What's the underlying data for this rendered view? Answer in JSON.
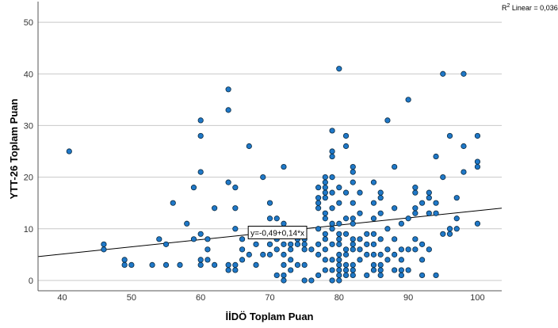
{
  "chart_data": {
    "type": "scatter",
    "xlabel": "İİDÖ Toplam Puan",
    "ylabel": "YTT-26 Toplam Puan",
    "xlim": [
      36.5,
      103.5
    ],
    "ylim": [
      -2,
      54
    ],
    "x_ticks": [
      40,
      50,
      60,
      70,
      80,
      90,
      100
    ],
    "y_ticks": [
      0,
      10,
      20,
      30,
      40,
      50
    ],
    "grid": "horizontal",
    "colors": {
      "point": "#1f78c8",
      "point_edge": "#0b2a40",
      "grid": "#c8c8c8",
      "fit_line": "#000000"
    },
    "r2_label": {
      "prefix": "R",
      "sup": "2",
      "text": " Linear = 0,036"
    },
    "fit_line": {
      "intercept": -0.49,
      "slope": 0.14,
      "label": "y=-0,49+0,14*x"
    },
    "points": [
      [
        41,
        25
      ],
      [
        46,
        7
      ],
      [
        46,
        6
      ],
      [
        49,
        4
      ],
      [
        49,
        3
      ],
      [
        50,
        3
      ],
      [
        53,
        3
      ],
      [
        54,
        8
      ],
      [
        55,
        7
      ],
      [
        55,
        3
      ],
      [
        56,
        15
      ],
      [
        57,
        3
      ],
      [
        58,
        11
      ],
      [
        59,
        18
      ],
      [
        59,
        8
      ],
      [
        60,
        31
      ],
      [
        60,
        28
      ],
      [
        60,
        21
      ],
      [
        60,
        9
      ],
      [
        60,
        4
      ],
      [
        60,
        3
      ],
      [
        61,
        8
      ],
      [
        61,
        6
      ],
      [
        61,
        4
      ],
      [
        62,
        14
      ],
      [
        62,
        3
      ],
      [
        64,
        37
      ],
      [
        64,
        33
      ],
      [
        64,
        19
      ],
      [
        64,
        3
      ],
      [
        64,
        2
      ],
      [
        65,
        18
      ],
      [
        65,
        14
      ],
      [
        65,
        10
      ],
      [
        65,
        3
      ],
      [
        65,
        2
      ],
      [
        66,
        8
      ],
      [
        66,
        6
      ],
      [
        66,
        4
      ],
      [
        67,
        26
      ],
      [
        67,
        5
      ],
      [
        68,
        7
      ],
      [
        68,
        3
      ],
      [
        69,
        20
      ],
      [
        69,
        5
      ],
      [
        70,
        15
      ],
      [
        70,
        12
      ],
      [
        70,
        10
      ],
      [
        70,
        7
      ],
      [
        70,
        5
      ],
      [
        71,
        12
      ],
      [
        71,
        8
      ],
      [
        71,
        6
      ],
      [
        71,
        1
      ],
      [
        72,
        22
      ],
      [
        72,
        11
      ],
      [
        72,
        9
      ],
      [
        72,
        7
      ],
      [
        72,
        5
      ],
      [
        72,
        3
      ],
      [
        72,
        1
      ],
      [
        72,
        0
      ],
      [
        73,
        7
      ],
      [
        73,
        6
      ],
      [
        73,
        4
      ],
      [
        73,
        2
      ],
      [
        74,
        8
      ],
      [
        74,
        7
      ],
      [
        74,
        3
      ],
      [
        75,
        8
      ],
      [
        75,
        7
      ],
      [
        75,
        6
      ],
      [
        75,
        3
      ],
      [
        75,
        0
      ],
      [
        76,
        6
      ],
      [
        76,
        0
      ],
      [
        77,
        18
      ],
      [
        77,
        16
      ],
      [
        77,
        15
      ],
      [
        77,
        14
      ],
      [
        77,
        10
      ],
      [
        77,
        7
      ],
      [
        77,
        5
      ],
      [
        77,
        1
      ],
      [
        78,
        20
      ],
      [
        78,
        19
      ],
      [
        78,
        18
      ],
      [
        78,
        17
      ],
      [
        78,
        16
      ],
      [
        78,
        13
      ],
      [
        78,
        12
      ],
      [
        78,
        9
      ],
      [
        78,
        8
      ],
      [
        78,
        6
      ],
      [
        78,
        4
      ],
      [
        78,
        2
      ],
      [
        79,
        29
      ],
      [
        79,
        25
      ],
      [
        79,
        24
      ],
      [
        79,
        20
      ],
      [
        79,
        17
      ],
      [
        79,
        14
      ],
      [
        79,
        11
      ],
      [
        79,
        10
      ],
      [
        79,
        7
      ],
      [
        79,
        4
      ],
      [
        79,
        2
      ],
      [
        79,
        0
      ],
      [
        80,
        41
      ],
      [
        80,
        18
      ],
      [
        80,
        15
      ],
      [
        80,
        11
      ],
      [
        80,
        9
      ],
      [
        80,
        8
      ],
      [
        80,
        7
      ],
      [
        80,
        5
      ],
      [
        80,
        4
      ],
      [
        80,
        3
      ],
      [
        80,
        2
      ],
      [
        80,
        1
      ],
      [
        80,
        0
      ],
      [
        81,
        28
      ],
      [
        81,
        26
      ],
      [
        81,
        17
      ],
      [
        81,
        12
      ],
      [
        81,
        9
      ],
      [
        81,
        6
      ],
      [
        81,
        5
      ],
      [
        81,
        3
      ],
      [
        81,
        2
      ],
      [
        81,
        1
      ],
      [
        82,
        22
      ],
      [
        82,
        21
      ],
      [
        82,
        19
      ],
      [
        82,
        15
      ],
      [
        82,
        12
      ],
      [
        82,
        11
      ],
      [
        82,
        8
      ],
      [
        82,
        7
      ],
      [
        82,
        6
      ],
      [
        82,
        3
      ],
      [
        82,
        2
      ],
      [
        82,
        1
      ],
      [
        83,
        17
      ],
      [
        83,
        13
      ],
      [
        83,
        8
      ],
      [
        83,
        6
      ],
      [
        83,
        4
      ],
      [
        84,
        9
      ],
      [
        84,
        7
      ],
      [
        84,
        5
      ],
      [
        84,
        1
      ],
      [
        85,
        19
      ],
      [
        85,
        15
      ],
      [
        85,
        12
      ],
      [
        85,
        9
      ],
      [
        85,
        7
      ],
      [
        85,
        5
      ],
      [
        85,
        3
      ],
      [
        85,
        2
      ],
      [
        86,
        17
      ],
      [
        86,
        16
      ],
      [
        86,
        13
      ],
      [
        86,
        8
      ],
      [
        86,
        5
      ],
      [
        86,
        3
      ],
      [
        86,
        2
      ],
      [
        86,
        1
      ],
      [
        87,
        31
      ],
      [
        87,
        10
      ],
      [
        87,
        6
      ],
      [
        87,
        4
      ],
      [
        88,
        22
      ],
      [
        88,
        14
      ],
      [
        88,
        8
      ],
      [
        88,
        5
      ],
      [
        88,
        2
      ],
      [
        89,
        11
      ],
      [
        89,
        6
      ],
      [
        89,
        4
      ],
      [
        89,
        2
      ],
      [
        89,
        1
      ],
      [
        90,
        35
      ],
      [
        90,
        12
      ],
      [
        90,
        6
      ],
      [
        90,
        2
      ],
      [
        91,
        18
      ],
      [
        91,
        17
      ],
      [
        91,
        14
      ],
      [
        91,
        13
      ],
      [
        91,
        8
      ],
      [
        91,
        6
      ],
      [
        92,
        15
      ],
      [
        92,
        7
      ],
      [
        92,
        4
      ],
      [
        92,
        1
      ],
      [
        93,
        17
      ],
      [
        93,
        16
      ],
      [
        93,
        13
      ],
      [
        93,
        6
      ],
      [
        94,
        24
      ],
      [
        94,
        15
      ],
      [
        94,
        13
      ],
      [
        94,
        1
      ],
      [
        95,
        40
      ],
      [
        95,
        20
      ],
      [
        95,
        9
      ],
      [
        96,
        28
      ],
      [
        96,
        10
      ],
      [
        96,
        9
      ],
      [
        97,
        16
      ],
      [
        97,
        12
      ],
      [
        97,
        10
      ],
      [
        98,
        40
      ],
      [
        98,
        26
      ],
      [
        98,
        21
      ],
      [
        100,
        28
      ],
      [
        100,
        23
      ],
      [
        100,
        22
      ],
      [
        100,
        11
      ]
    ]
  }
}
